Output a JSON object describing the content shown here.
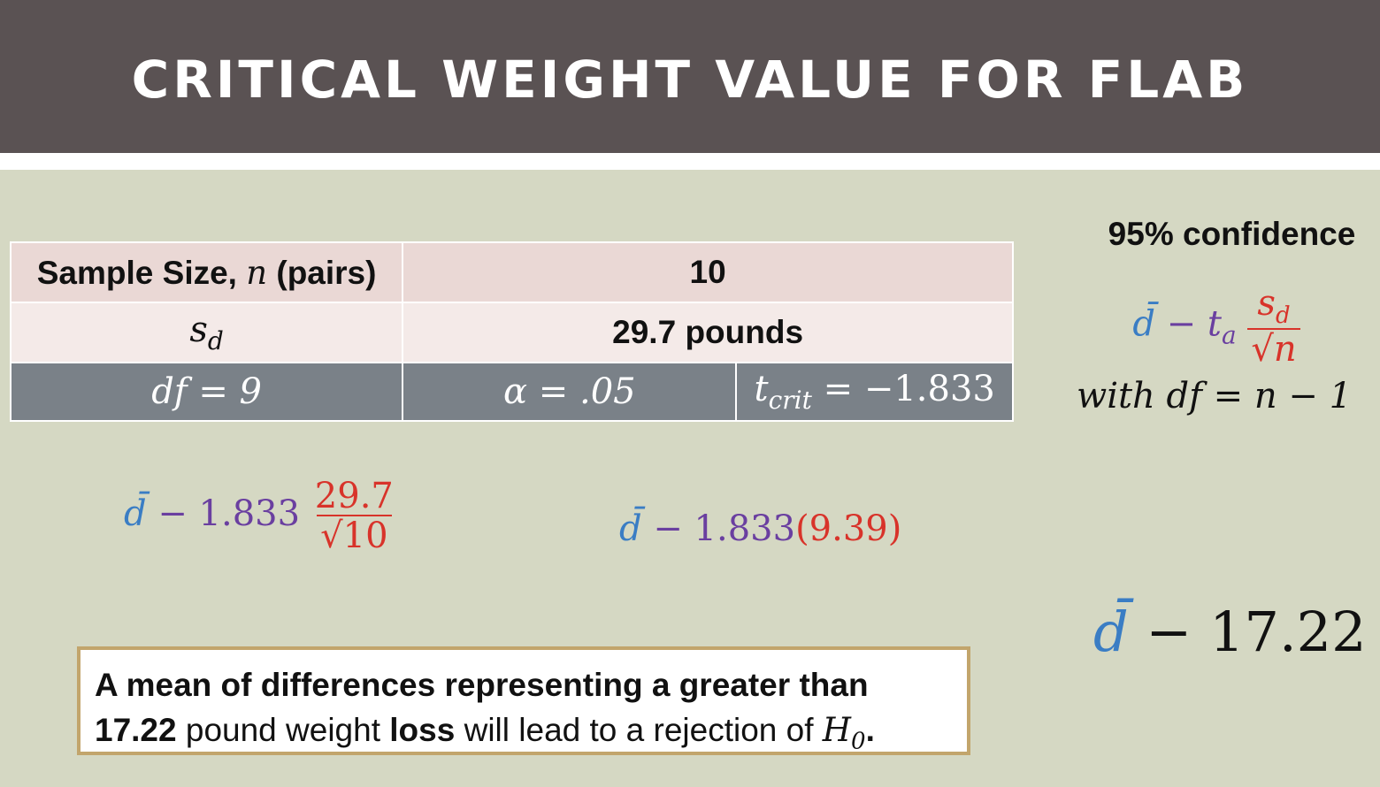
{
  "header": {
    "title": "CRITICAL WEIGHT VALUE FOR FLAB"
  },
  "table": {
    "row1": {
      "label": "Sample Size,",
      "var": "n",
      "label_suffix": "(pairs)",
      "value": "10"
    },
    "row2": {
      "label_var": "s",
      "label_sub": "d",
      "value": "29.7 pounds"
    },
    "row3": {
      "df": "df = 9",
      "alpha": "α = .05",
      "tcrit_var": "t",
      "tcrit_sub": "crit",
      "tcrit_value": " = −1.833"
    }
  },
  "right_panel": {
    "confidence_label": "95% confidence",
    "formula": {
      "dbar": "d̄",
      "minus": " − ",
      "t": "t",
      "t_sub": "a",
      "num_var": "s",
      "num_sub": "d",
      "den_var": "n",
      "den_root": "√"
    },
    "df_line": "with df = n − 1"
  },
  "equation_left": {
    "dbar": "d̄",
    "minus_coef": " − 1.833",
    "numerator": "29.7",
    "denominator": "√10"
  },
  "equation_mid": {
    "dbar": "d̄",
    "minus_coef": " − 1.833",
    "value": "(9.39)"
  },
  "result": {
    "dbar": "d̄",
    "value": " − 17.22"
  },
  "conclusion": {
    "line1": "A mean of differences representing a greater than",
    "line2_a": "17.22",
    "line2_b": " pound weight ",
    "line2_c": "loss",
    "line2_d": " will lead to a rejection of ",
    "h": "H",
    "h_sub": "0",
    "period": "."
  },
  "colors": {
    "header_bg": "#5a5253",
    "page_bg": "#d5d8c3",
    "blue": "#3a7dc4",
    "purple": "#6a3fa0",
    "red": "#d8332a",
    "box_border": "#c2a56c"
  }
}
